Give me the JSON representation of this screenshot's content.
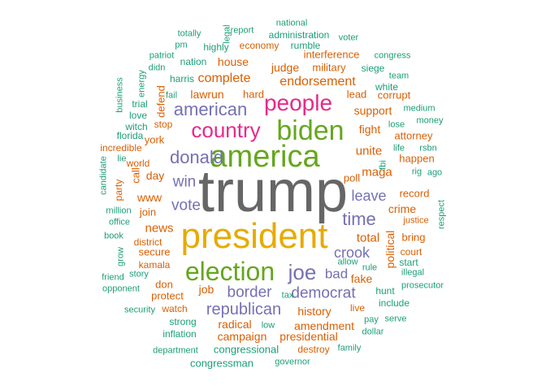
{
  "colors": {
    "green": "#1b9e77",
    "orange": "#d95f02",
    "purple": "#7570b3",
    "pink": "#e7298a",
    "lime": "#66a61e",
    "gold": "#e6ab02",
    "gray": "#666666"
  },
  "words": [
    {
      "text": "trump",
      "color": "gray"
    },
    {
      "text": "president",
      "color": "gold"
    },
    {
      "text": "america",
      "color": "lime"
    },
    {
      "text": "biden",
      "color": "lime"
    },
    {
      "text": "election",
      "color": "lime"
    },
    {
      "text": "country",
      "color": "pink"
    },
    {
      "text": "people",
      "color": "pink"
    },
    {
      "text": "joe",
      "color": "purple"
    },
    {
      "text": "donald",
      "color": "purple"
    },
    {
      "text": "american",
      "color": "purple"
    },
    {
      "text": "republican",
      "color": "purple"
    },
    {
      "text": "time",
      "color": "purple"
    },
    {
      "text": "democrat",
      "color": "purple"
    },
    {
      "text": "border",
      "color": "purple"
    },
    {
      "text": "win",
      "color": "purple"
    },
    {
      "text": "vote",
      "color": "purple"
    },
    {
      "text": "crook",
      "color": "purple"
    },
    {
      "text": "leave",
      "color": "purple"
    },
    {
      "text": "bad",
      "color": "purple"
    },
    {
      "text": "endorsement",
      "color": "orange"
    },
    {
      "text": "complete",
      "color": "orange"
    },
    {
      "text": "maga",
      "color": "orange"
    },
    {
      "text": "total",
      "color": "orange"
    },
    {
      "text": "unite",
      "color": "orange"
    },
    {
      "text": "news",
      "color": "orange"
    },
    {
      "text": "campaign",
      "color": "orange"
    },
    {
      "text": "history",
      "color": "orange"
    },
    {
      "text": "house",
      "color": "orange"
    },
    {
      "text": "judge",
      "color": "orange"
    },
    {
      "text": "support",
      "color": "orange"
    },
    {
      "text": "fight",
      "color": "orange"
    },
    {
      "text": "lawrun",
      "color": "orange"
    },
    {
      "text": "hard",
      "color": "orange"
    },
    {
      "text": "military",
      "color": "orange"
    },
    {
      "text": "interference",
      "color": "orange"
    },
    {
      "text": "economy",
      "color": "orange"
    },
    {
      "text": "day",
      "color": "orange"
    },
    {
      "text": "www",
      "color": "orange"
    },
    {
      "text": "york",
      "color": "orange"
    },
    {
      "text": "join",
      "color": "orange"
    },
    {
      "text": "district",
      "color": "orange"
    },
    {
      "text": "secure",
      "color": "orange"
    },
    {
      "text": "kamala",
      "color": "orange"
    },
    {
      "text": "don",
      "color": "orange"
    },
    {
      "text": "protect",
      "color": "orange"
    },
    {
      "text": "job",
      "color": "orange"
    },
    {
      "text": "radical",
      "color": "orange"
    },
    {
      "text": "amendment",
      "color": "orange"
    },
    {
      "text": "presidential",
      "color": "orange"
    },
    {
      "text": "destroy",
      "color": "orange"
    },
    {
      "text": "fake",
      "color": "orange"
    },
    {
      "text": "poll",
      "color": "orange"
    },
    {
      "text": "crime",
      "color": "orange"
    },
    {
      "text": "political",
      "color": "orange"
    },
    {
      "text": "bring",
      "color": "orange"
    },
    {
      "text": "record",
      "color": "orange"
    },
    {
      "text": "happen",
      "color": "orange"
    },
    {
      "text": "attorney",
      "color": "orange"
    },
    {
      "text": "corrupt",
      "color": "orange"
    },
    {
      "text": "lead",
      "color": "orange"
    },
    {
      "text": "court",
      "color": "orange"
    },
    {
      "text": "live",
      "color": "orange"
    },
    {
      "text": "watch",
      "color": "orange"
    },
    {
      "text": "stop",
      "color": "orange"
    },
    {
      "text": "defend",
      "color": "orange"
    },
    {
      "text": "call",
      "color": "orange"
    },
    {
      "text": "world",
      "color": "orange"
    },
    {
      "text": "incredible",
      "color": "orange"
    },
    {
      "text": "party",
      "color": "orange"
    },
    {
      "text": "justice",
      "color": "orange"
    },
    {
      "text": "congressional",
      "color": "green"
    },
    {
      "text": "congressman",
      "color": "green"
    },
    {
      "text": "strong",
      "color": "green"
    },
    {
      "text": "inflation",
      "color": "green"
    },
    {
      "text": "department",
      "color": "green"
    },
    {
      "text": "governor",
      "color": "green"
    },
    {
      "text": "family",
      "color": "green"
    },
    {
      "text": "dollar",
      "color": "green"
    },
    {
      "text": "pay",
      "color": "green"
    },
    {
      "text": "serve",
      "color": "green"
    },
    {
      "text": "include",
      "color": "green"
    },
    {
      "text": "hunt",
      "color": "green"
    },
    {
      "text": "prosecutor",
      "color": "green"
    },
    {
      "text": "illegal",
      "color": "green"
    },
    {
      "text": "start",
      "color": "green"
    },
    {
      "text": "rule",
      "color": "green"
    },
    {
      "text": "allow",
      "color": "green"
    },
    {
      "text": "tax",
      "color": "green"
    },
    {
      "text": "low",
      "color": "green"
    },
    {
      "text": "security",
      "color": "green"
    },
    {
      "text": "opponent",
      "color": "green"
    },
    {
      "text": "friend",
      "color": "green"
    },
    {
      "text": "story",
      "color": "green"
    },
    {
      "text": "grow",
      "color": "green"
    },
    {
      "text": "book",
      "color": "green"
    },
    {
      "text": "office",
      "color": "green"
    },
    {
      "text": "million",
      "color": "green"
    },
    {
      "text": "candidate",
      "color": "green"
    },
    {
      "text": "lie",
      "color": "green"
    },
    {
      "text": "florida",
      "color": "green"
    },
    {
      "text": "witch",
      "color": "green"
    },
    {
      "text": "love",
      "color": "green"
    },
    {
      "text": "trial",
      "color": "green"
    },
    {
      "text": "business",
      "color": "green"
    },
    {
      "text": "energy",
      "color": "green"
    },
    {
      "text": "fail",
      "color": "green"
    },
    {
      "text": "harris",
      "color": "green"
    },
    {
      "text": "didn",
      "color": "green"
    },
    {
      "text": "patriot",
      "color": "green"
    },
    {
      "text": "pm",
      "color": "green"
    },
    {
      "text": "nation",
      "color": "green"
    },
    {
      "text": "totally",
      "color": "green"
    },
    {
      "text": "highly",
      "color": "green"
    },
    {
      "text": "legal",
      "color": "green"
    },
    {
      "text": "report",
      "color": "green"
    },
    {
      "text": "national",
      "color": "green"
    },
    {
      "text": "administration",
      "color": "green"
    },
    {
      "text": "voter",
      "color": "green"
    },
    {
      "text": "rumble",
      "color": "green"
    },
    {
      "text": "congress",
      "color": "green"
    },
    {
      "text": "siege",
      "color": "green"
    },
    {
      "text": "team",
      "color": "green"
    },
    {
      "text": "white",
      "color": "green"
    },
    {
      "text": "medium",
      "color": "green"
    },
    {
      "text": "money",
      "color": "green"
    },
    {
      "text": "lose",
      "color": "green"
    },
    {
      "text": "life",
      "color": "green"
    },
    {
      "text": "rsbn",
      "color": "green"
    },
    {
      "text": "rig",
      "color": "green"
    },
    {
      "text": "ago",
      "color": "green"
    },
    {
      "text": "fbi",
      "color": "green"
    },
    {
      "text": "respect",
      "color": "green"
    }
  ]
}
